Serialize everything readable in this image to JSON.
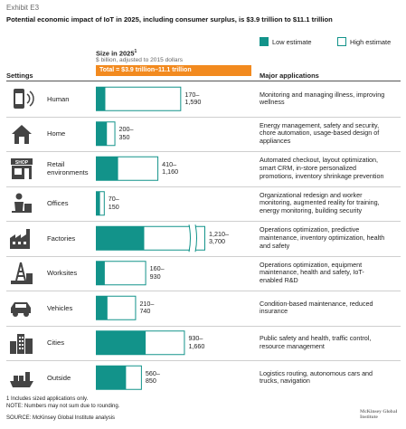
{
  "exhibit": "Exhibit E3",
  "title": "Potential economic impact of IoT in 2025, including consumer surplus, is $3.9 trillion to $11.1 trillion",
  "legend": {
    "low": "Low estimate",
    "high": "High estimate"
  },
  "size_header": {
    "label": "Size in 2025",
    "sup": "1",
    "sub": "$ billion, adjusted to 2015 dollars"
  },
  "total": "Total = $3.9 trillion–11.1 trillion",
  "col_settings": "Settings",
  "col_apps": "Major applications",
  "colors": {
    "accent": "#12938a",
    "total_bar": "#f28a1f"
  },
  "chart_data": {
    "type": "bar",
    "orientation": "horizontal",
    "categories": [
      "Human",
      "Home",
      "Retail environments",
      "Offices",
      "Factories",
      "Worksites",
      "Vehicles",
      "Cities",
      "Outside"
    ],
    "series": [
      {
        "name": "Low estimate",
        "values": [
          170,
          200,
          410,
          70,
          1210,
          160,
          210,
          930,
          560
        ]
      },
      {
        "name": "High estimate",
        "values": [
          1590,
          350,
          1160,
          150,
          3700,
          930,
          740,
          1660,
          850
        ]
      }
    ],
    "axis_break_category": "Factories",
    "labels": [
      [
        "170–",
        "1,590"
      ],
      [
        "200–",
        "350"
      ],
      [
        "410–",
        "1,160"
      ],
      [
        "70–",
        "150"
      ],
      [
        "1,210–",
        "3,700"
      ],
      [
        "160–",
        "930"
      ],
      [
        "210–",
        "740"
      ],
      [
        "930–",
        "1,660"
      ],
      [
        "560–",
        "850"
      ]
    ]
  },
  "rows": [
    {
      "label": [
        "Human"
      ],
      "icon": "watch-icon",
      "apps": [
        "Monitoring and managing illness, improving",
        "wellness"
      ]
    },
    {
      "label": [
        "Home"
      ],
      "icon": "house-icon",
      "apps": [
        "Energy management, safety and security,",
        "chore automation, usage-based design of",
        "appliances"
      ]
    },
    {
      "label": [
        "Retail",
        "environments"
      ],
      "icon": "shop-icon",
      "shop_text": "SHOP",
      "apps": [
        "Automated checkout, layout optimization,",
        "smart CRM, in-store personalized",
        "promotions, inventory shrinkage prevention"
      ]
    },
    {
      "label": [
        "Offices"
      ],
      "icon": "office-worker-icon",
      "apps": [
        "Organizational redesign and worker",
        "monitoring, augmented reality for training,",
        "energy monitoring, building security"
      ]
    },
    {
      "label": [
        "Factories"
      ],
      "icon": "factory-icon",
      "apps": [
        "Operations optimization, predictive",
        "maintenance, inventory optimization, health",
        "and safety"
      ]
    },
    {
      "label": [
        "Worksites"
      ],
      "icon": "oil-rig-icon",
      "apps": [
        "Operations optimization, equipment",
        "maintenance, health and safety, IoT-",
        "enabled R&D"
      ]
    },
    {
      "label": [
        "Vehicles"
      ],
      "icon": "car-icon",
      "apps": [
        "Condition-based maintenance, reduced",
        "insurance"
      ]
    },
    {
      "label": [
        "Cities"
      ],
      "icon": "city-icon",
      "apps": [
        "Public safety and health, traffic control,",
        "resource management"
      ]
    },
    {
      "label": [
        "Outside"
      ],
      "icon": "ship-icon",
      "apps": [
        "Logistics routing, autonomous cars and",
        "trucks, navigation"
      ]
    }
  ],
  "footnote": "1  Includes sized applications only.",
  "note": "NOTE: Numbers may not sum due to rounding.",
  "source": "SOURCE: McKinsey Global Institute analysis",
  "logo": "McKinsey Global Institute"
}
